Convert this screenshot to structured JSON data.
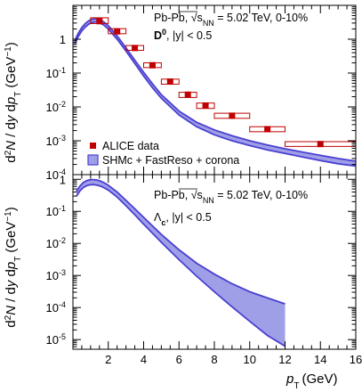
{
  "chart_data": [
    {
      "type": "line",
      "panel": "top",
      "ylabel": "d²N / dy dp_T (GeV⁻¹)",
      "y_scale": "log",
      "ylim": [
        0.0001,
        10
      ],
      "xlim": [
        0,
        16
      ],
      "yticks": [
        {
          "v": 0.0001,
          "m": "10",
          "e": "-4"
        },
        {
          "v": 0.001,
          "m": "10",
          "e": "-3"
        },
        {
          "v": 0.01,
          "m": "10",
          "e": "-2"
        },
        {
          "v": 0.1,
          "m": "10",
          "e": "-1"
        },
        {
          "v": 1,
          "m": "1",
          "e": ""
        }
      ],
      "annotation": {
        "system": "Pb-Pb, ",
        "energy_symbol": "√s",
        "energy_sub": "NN",
        "energy_value": " = 5.02 TeV, 0-10%",
        "particle": "D",
        "particle_sup": "0",
        "rapidity": ", |y| < 0.5"
      },
      "legend": [
        {
          "kind": "marker",
          "label": "ALICE data"
        },
        {
          "kind": "band",
          "label": "SHMc + FastReso + corona"
        }
      ],
      "data_series": {
        "name": "ALICE data",
        "color": "#c00000",
        "points": [
          {
            "x": 1.5,
            "xlo": 1,
            "xhi": 2,
            "y": 3.4,
            "ylo": 2.9,
            "yhi": 4.3
          },
          {
            "x": 2.5,
            "xlo": 2,
            "xhi": 3,
            "y": 1.7,
            "ylo": 1.45,
            "yhi": 2.05
          },
          {
            "x": 3.5,
            "xlo": 3,
            "xhi": 4,
            "y": 0.55,
            "ylo": 0.47,
            "yhi": 0.65
          },
          {
            "x": 4.5,
            "xlo": 4,
            "xhi": 5,
            "y": 0.17,
            "ylo": 0.145,
            "yhi": 0.2
          },
          {
            "x": 5.5,
            "xlo": 5,
            "xhi": 6,
            "y": 0.056,
            "ylo": 0.047,
            "yhi": 0.066
          },
          {
            "x": 6.5,
            "xlo": 6,
            "xhi": 7,
            "y": 0.023,
            "ylo": 0.019,
            "yhi": 0.027
          },
          {
            "x": 7.5,
            "xlo": 7,
            "xhi": 8,
            "y": 0.011,
            "ylo": 0.009,
            "yhi": 0.013
          },
          {
            "x": 9,
            "xlo": 8,
            "xhi": 10,
            "y": 0.0055,
            "ylo": 0.0046,
            "yhi": 0.0065
          },
          {
            "x": 11,
            "xlo": 10,
            "xhi": 12,
            "y": 0.0022,
            "ylo": 0.00185,
            "yhi": 0.0026
          },
          {
            "x": 14,
            "xlo": 12,
            "xhi": 16,
            "y": 0.0008,
            "ylo": 0.00068,
            "yhi": 0.00094
          }
        ]
      },
      "band_series": {
        "name": "SHMc + FastReso + corona",
        "fill": "#9f9fe8",
        "line": "#4a3fd0",
        "x": [
          0.1,
          0.3,
          0.5,
          0.7,
          0.9,
          1.1,
          1.3,
          1.5,
          1.75,
          2,
          2.5,
          3,
          3.5,
          4,
          4.5,
          5,
          6,
          7,
          8,
          9,
          10,
          11,
          12,
          13,
          14,
          15,
          16
        ],
        "upper": [
          0.9,
          1.5,
          2.2,
          2.9,
          3.5,
          3.9,
          4.0,
          3.8,
          3.2,
          2.5,
          1.25,
          0.56,
          0.24,
          0.105,
          0.048,
          0.023,
          0.0075,
          0.0035,
          0.0021,
          0.0014,
          0.001,
          0.00075,
          0.00058,
          0.00046,
          0.00037,
          0.0003,
          0.00025
        ],
        "lower": [
          0.72,
          1.2,
          1.75,
          2.3,
          2.8,
          3.15,
          3.25,
          3.1,
          2.6,
          2.0,
          1.0,
          0.45,
          0.19,
          0.082,
          0.037,
          0.018,
          0.0058,
          0.0026,
          0.0015,
          0.001,
          0.00072,
          0.00054,
          0.00042,
          0.00033,
          0.00026,
          0.00021,
          0.00018
        ]
      }
    },
    {
      "type": "area",
      "panel": "bottom",
      "xlabel": "p_T (GeV)",
      "ylabel": "d²N / dy dp_T (GeV⁻¹)",
      "y_scale": "log",
      "ylim": [
        5e-06,
        1.4
      ],
      "xlim": [
        0,
        16
      ],
      "xticks": [
        2,
        4,
        6,
        8,
        10,
        12,
        14,
        16
      ],
      "yticks": [
        {
          "v": 1e-05,
          "m": "10",
          "e": "-5"
        },
        {
          "v": 0.0001,
          "m": "10",
          "e": "-4"
        },
        {
          "v": 0.001,
          "m": "10",
          "e": "-3"
        },
        {
          "v": 0.01,
          "m": "10",
          "e": "-2"
        },
        {
          "v": 0.1,
          "m": "10",
          "e": "-1"
        },
        {
          "v": 1,
          "m": "1",
          "e": ""
        }
      ],
      "annotation": {
        "system": "Pb-Pb, ",
        "energy_symbol": "√s",
        "energy_sub": "NN",
        "energy_value": " = 5.02 TeV, 0-10%",
        "particle": "Λ",
        "particle_sub": "c",
        "rapidity": ", |y| < 0.5"
      },
      "band_series": {
        "name": "SHMc + FastReso + corona",
        "fill": "#9f9fe8",
        "line": "#4a3fd0",
        "x": [
          0.2,
          0.4,
          0.6,
          0.8,
          1.0,
          1.2,
          1.4,
          1.6,
          1.8,
          2.0,
          2.5,
          3,
          3.5,
          4,
          5,
          6,
          7,
          8,
          9,
          10,
          11,
          12
        ],
        "upper": [
          0.42,
          0.62,
          0.8,
          0.92,
          0.98,
          0.98,
          0.94,
          0.86,
          0.76,
          0.65,
          0.4,
          0.22,
          0.12,
          0.065,
          0.019,
          0.0063,
          0.0024,
          0.0011,
          0.00055,
          0.00031,
          0.0002,
          0.00013
        ],
        "lower": [
          0.3,
          0.44,
          0.56,
          0.64,
          0.68,
          0.68,
          0.65,
          0.6,
          0.53,
          0.46,
          0.28,
          0.15,
          0.078,
          0.04,
          0.0108,
          0.0031,
          0.00095,
          0.00031,
          0.000105,
          3.7e-05,
          1.35e-05,
          6.2e-06
        ]
      }
    }
  ]
}
